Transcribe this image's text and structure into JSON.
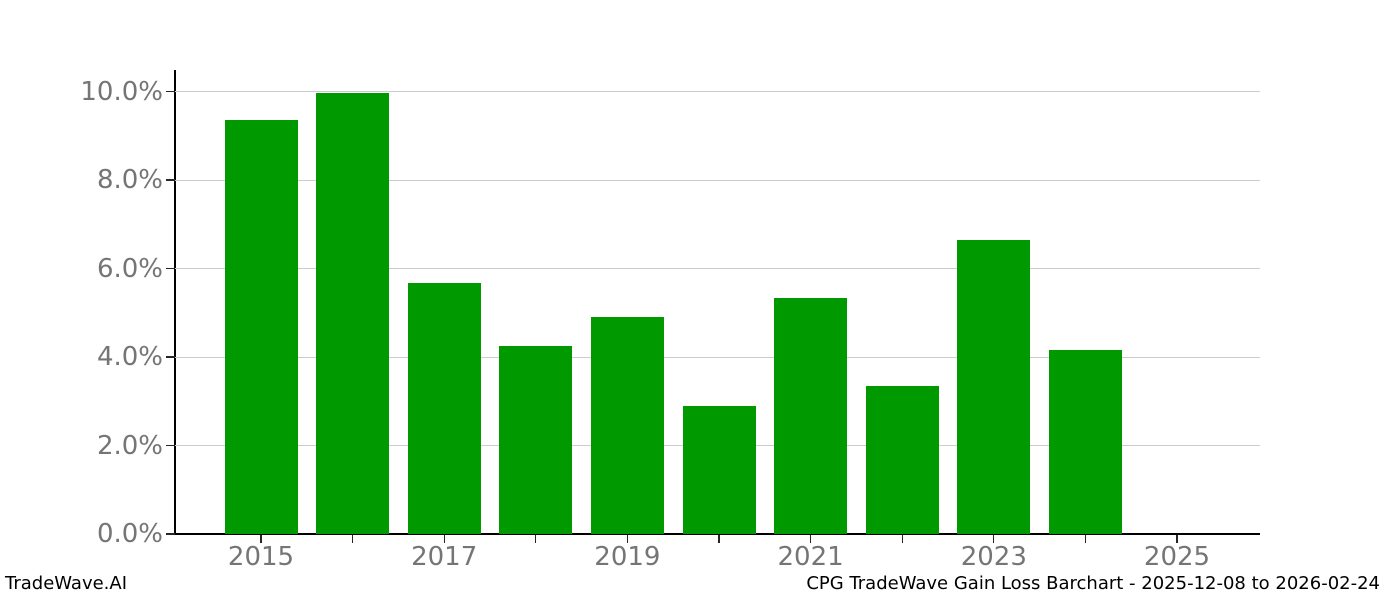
{
  "footer": {
    "left": "TradeWave.AI",
    "right": "CPG TradeWave Gain Loss Barchart - 2025-12-08 to 2026-02-24"
  },
  "chart_data": {
    "type": "bar",
    "categories": [
      "2015",
      "2016",
      "2017",
      "2018",
      "2019",
      "2020",
      "2021",
      "2022",
      "2023",
      "2024"
    ],
    "values": [
      9.35,
      9.97,
      5.68,
      4.25,
      4.9,
      2.9,
      5.34,
      3.35,
      6.65,
      4.16
    ],
    "title": "",
    "xlabel": "",
    "ylabel": "",
    "ylim": [
      0,
      10.5
    ],
    "xlim_years": [
      2014.06,
      2025.9
    ],
    "ytick_values": [
      0,
      2,
      4,
      6,
      8,
      10
    ],
    "ytick_labels": [
      "0.0%",
      "2.0%",
      "4.0%",
      "6.0%",
      "8.0%",
      "10.0%"
    ],
    "xtick_all_years": [
      2015,
      2016,
      2017,
      2018,
      2019,
      2020,
      2021,
      2022,
      2023,
      2024,
      2025
    ],
    "xtick_labeled_years": [
      2015,
      2017,
      2019,
      2021,
      2023,
      2025
    ],
    "legend": null,
    "grid": true,
    "bar_color": "#009900",
    "grid_color": "#cccccc",
    "axis_color": "#000000",
    "tick_label_color": "#757575"
  }
}
